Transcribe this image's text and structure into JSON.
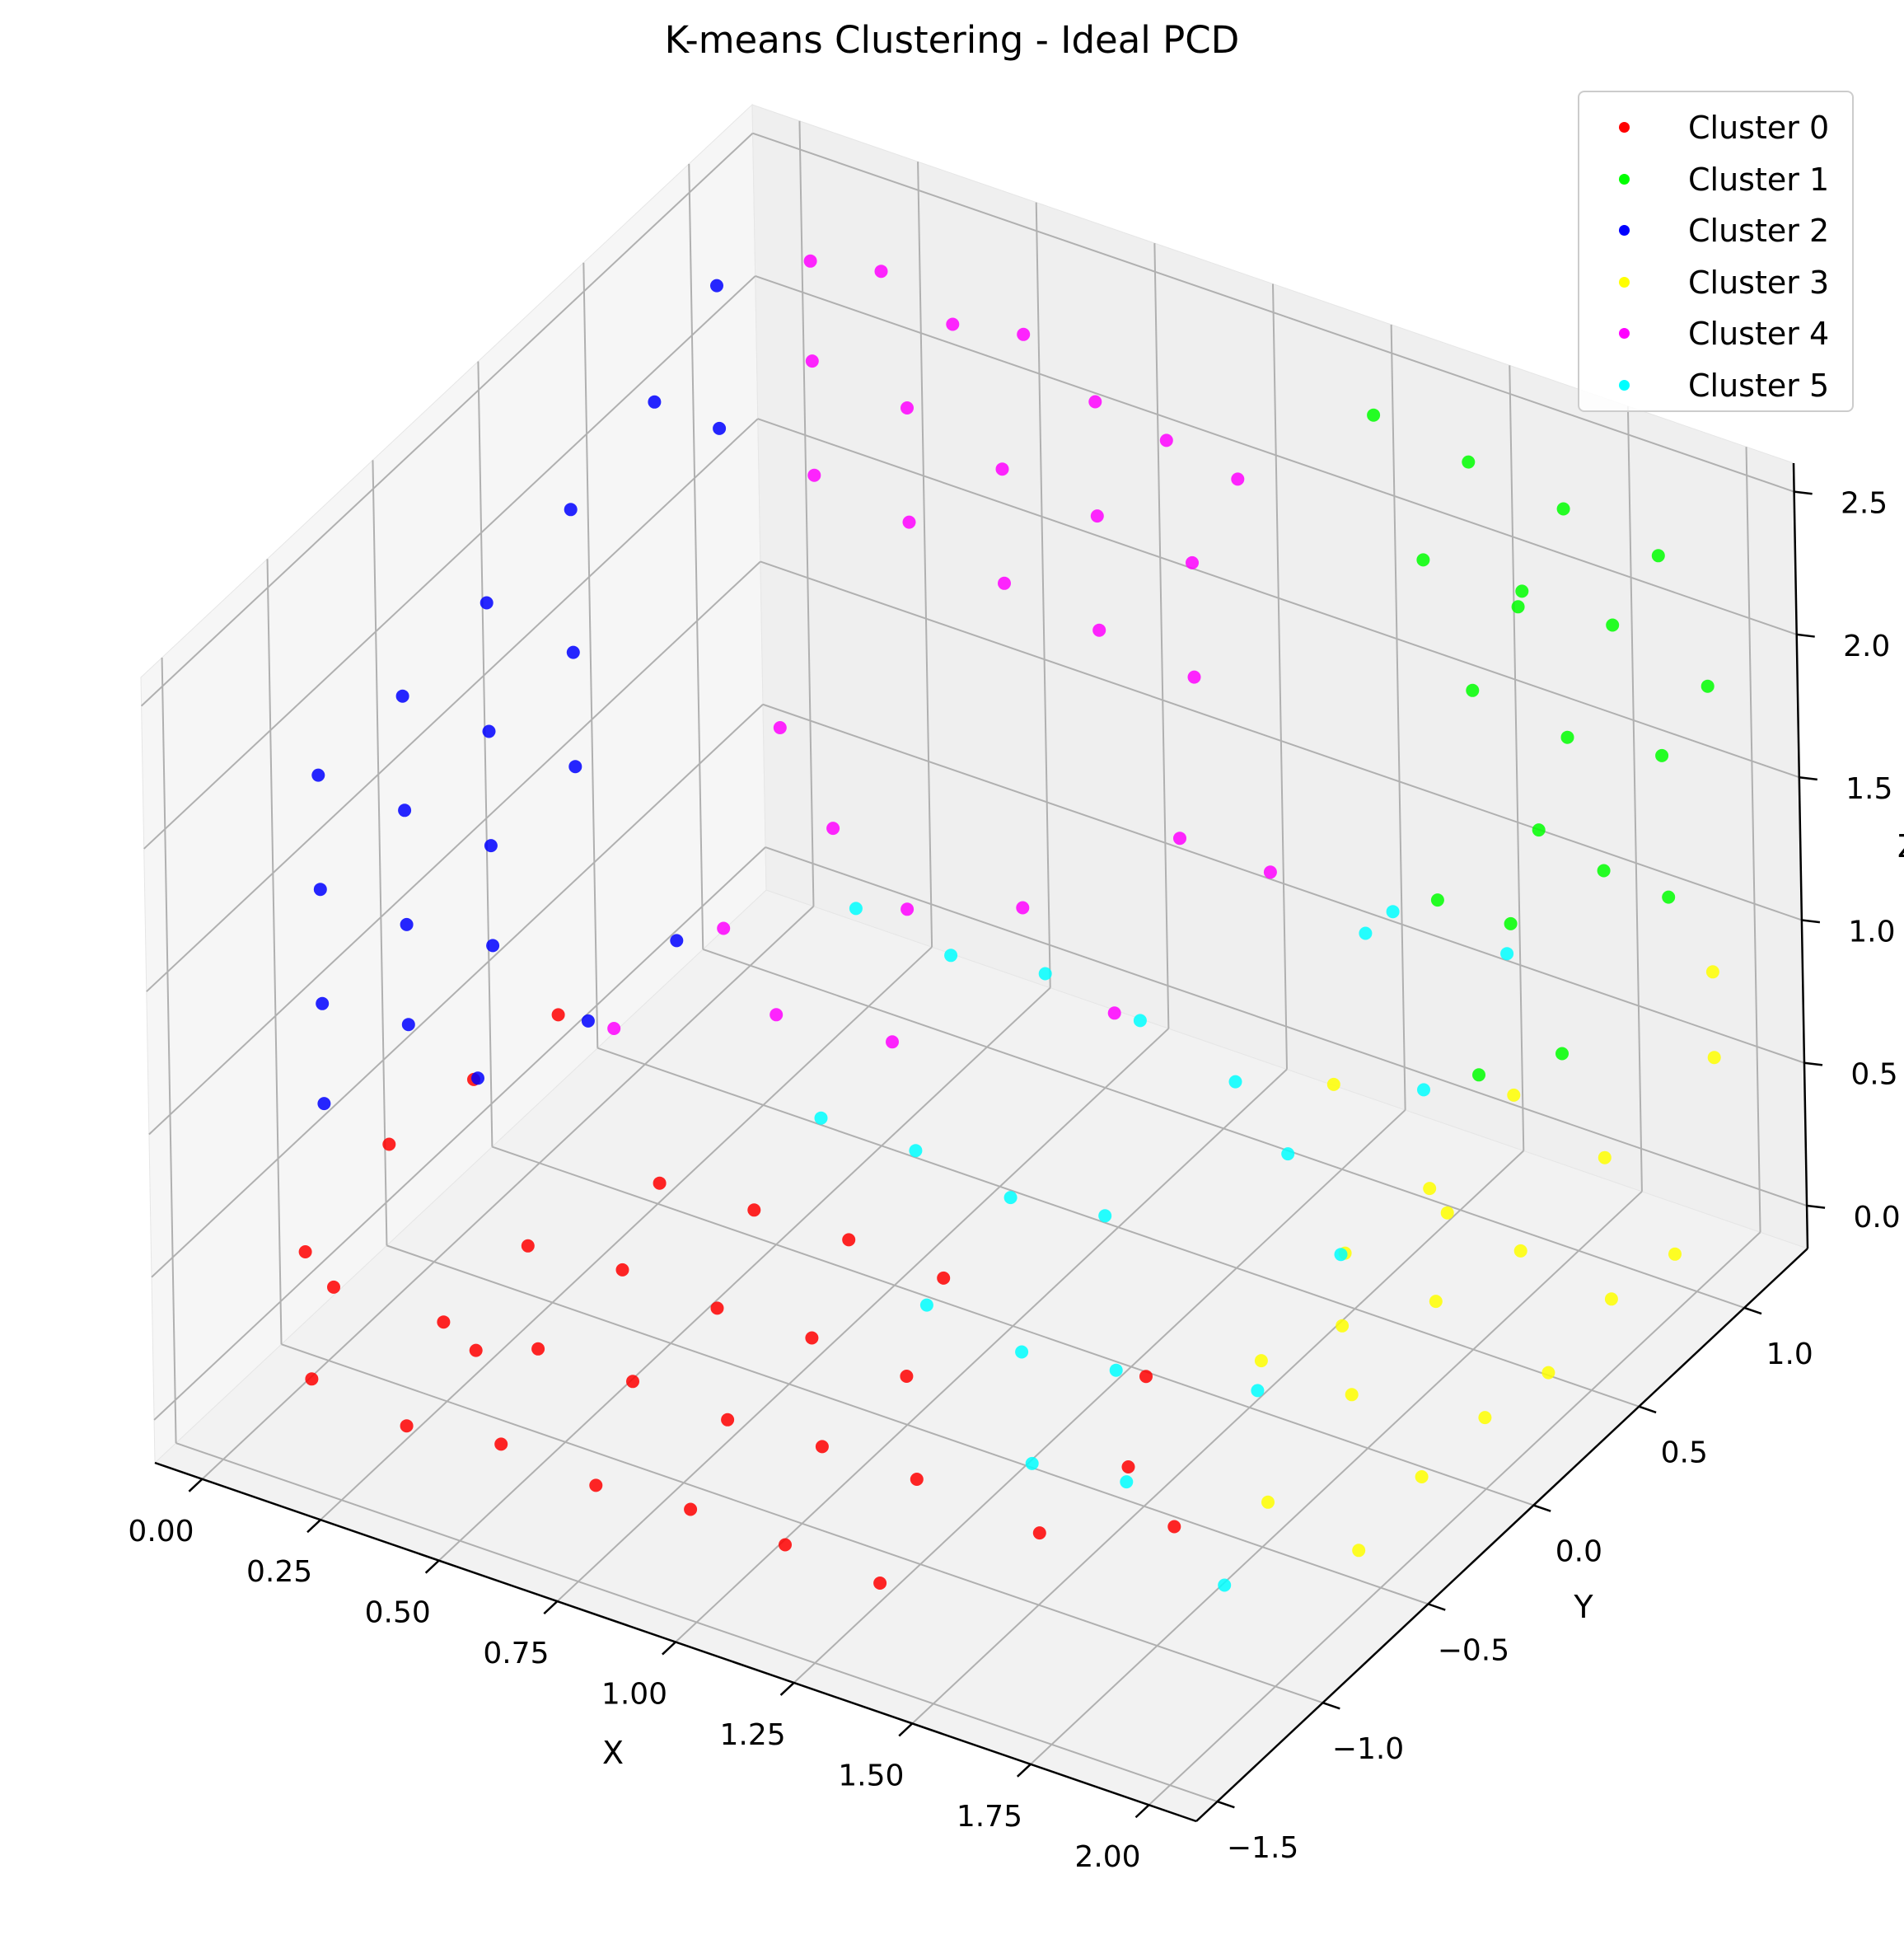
{
  "chart_data": {
    "type": "scatter",
    "projection": "3d",
    "title": "K-means Clustering - Ideal PCD",
    "xlabel": "X",
    "ylabel": "Y",
    "zlabel": "Z",
    "xlim": [
      -0.1,
      2.1
    ],
    "ylim": [
      -1.6,
      1.3
    ],
    "zlim": [
      -0.15,
      2.6
    ],
    "xticks": [
      "0.00",
      "0.25",
      "0.50",
      "0.75",
      "1.00",
      "1.25",
      "1.50",
      "1.75",
      "2.00"
    ],
    "yticks": [
      "−1.5",
      "−1.0",
      "−0.5",
      "0.0",
      "0.5",
      "1.0"
    ],
    "zticks": [
      "0.0",
      "0.5",
      "1.0",
      "1.5",
      "2.0",
      "2.5"
    ],
    "grid": true,
    "legend_position": "top-right",
    "series": [
      {
        "name": "Cluster 0",
        "color": "#ff0000",
        "points": [
          [
            0.1,
            -1.3,
            0.05
          ],
          [
            0.3,
            -1.3,
            0.0
          ],
          [
            0.5,
            -1.3,
            0.05
          ],
          [
            0.7,
            -1.3,
            0.02
          ],
          [
            0.9,
            -1.3,
            0.05
          ],
          [
            1.1,
            -1.3,
            0.04
          ],
          [
            1.3,
            -1.3,
            0.02
          ],
          [
            0.2,
            -0.9,
            0.03
          ],
          [
            0.4,
            -0.9,
            0.05
          ],
          [
            0.6,
            -0.9,
            0.05
          ],
          [
            0.8,
            -0.9,
            0.03
          ],
          [
            1.0,
            -0.9,
            0.05
          ],
          [
            1.2,
            -0.9,
            0.05
          ],
          [
            0.2,
            -0.5,
            0.02
          ],
          [
            0.4,
            -0.5,
            0.05
          ],
          [
            0.6,
            -0.5,
            0.03
          ],
          [
            0.8,
            -0.5,
            0.04
          ],
          [
            1.0,
            -0.5,
            0.02
          ],
          [
            0.3,
            -0.1,
            0.02
          ],
          [
            0.5,
            -0.1,
            0.04
          ],
          [
            0.7,
            -0.1,
            0.05
          ],
          [
            0.9,
            -0.1,
            0.03
          ],
          [
            0.0,
            -1.1,
            0.3
          ],
          [
            0.0,
            -0.7,
            0.4
          ],
          [
            0.0,
            -0.3,
            0.35
          ],
          [
            0.0,
            0.1,
            0.3
          ],
          [
            0.15,
            -1.3,
            0.4
          ],
          [
            0.45,
            -1.3,
            0.35
          ],
          [
            1.55,
            -1.1,
            0.2
          ],
          [
            1.65,
            -0.9,
            0.35
          ],
          [
            1.6,
            -0.7,
            0.5
          ],
          [
            1.7,
            -0.8,
            0.1
          ]
        ]
      },
      {
        "name": "Cluster 1",
        "color": "#00ff00",
        "points": [
          [
            1.3,
            1.1,
            2.45
          ],
          [
            1.5,
            1.1,
            2.4
          ],
          [
            1.7,
            1.1,
            2.35
          ],
          [
            1.9,
            1.1,
            2.3
          ],
          [
            1.4,
            1.1,
            2.0
          ],
          [
            1.6,
            1.1,
            1.95
          ],
          [
            1.8,
            1.1,
            2.0
          ],
          [
            2.0,
            1.1,
            1.9
          ],
          [
            1.5,
            1.1,
            1.6
          ],
          [
            1.7,
            1.1,
            1.55
          ],
          [
            1.9,
            1.1,
            1.6
          ],
          [
            2.0,
            0.9,
            1.3
          ],
          [
            2.0,
            0.6,
            1.6
          ],
          [
            2.0,
            0.3,
            1.95
          ],
          [
            2.0,
            0.0,
            1.3
          ],
          [
            1.95,
            0.5,
            1.0
          ],
          [
            1.8,
            0.6,
            1.3
          ],
          [
            1.6,
            0.7,
            1.2
          ],
          [
            1.7,
            0.9,
            2.2
          ]
        ]
      },
      {
        "name": "Cluster 2",
        "color": "#0000ff",
        "points": [
          [
            0.0,
            -1.0,
            1.9
          ],
          [
            0.0,
            -0.6,
            1.9
          ],
          [
            0.0,
            -0.2,
            1.95
          ],
          [
            0.0,
            0.2,
            2.0
          ],
          [
            0.0,
            -1.0,
            1.5
          ],
          [
            0.0,
            -0.6,
            1.5
          ],
          [
            0.0,
            -0.2,
            1.5
          ],
          [
            0.0,
            0.2,
            1.5
          ],
          [
            0.0,
            -1.0,
            1.1
          ],
          [
            0.0,
            -0.6,
            1.1
          ],
          [
            0.0,
            -0.2,
            1.1
          ],
          [
            0.0,
            0.2,
            1.1
          ],
          [
            0.0,
            -1.0,
            0.75
          ],
          [
            0.0,
            -0.6,
            0.75
          ],
          [
            0.0,
            -0.2,
            0.75
          ],
          [
            0.0,
            0.6,
            2.1
          ],
          [
            0.0,
            0.9,
            2.3
          ],
          [
            0.0,
            0.9,
            1.8
          ],
          [
            0.1,
            -0.5,
            0.55
          ],
          [
            0.2,
            -0.2,
            0.6
          ],
          [
            0.3,
            0.0,
            0.8
          ]
        ]
      },
      {
        "name": "Cluster 3",
        "color": "#ffff00",
        "points": [
          [
            2.0,
            -0.6,
            0.05
          ],
          [
            2.0,
            -0.3,
            0.1
          ],
          [
            2.0,
            0.0,
            0.1
          ],
          [
            2.0,
            0.3,
            0.05
          ],
          [
            2.0,
            0.6,
            0.1
          ],
          [
            2.0,
            0.9,
            0.05
          ],
          [
            1.9,
            -0.8,
            0.3
          ],
          [
            1.9,
            -0.4,
            0.4
          ],
          [
            1.9,
            0.0,
            0.45
          ],
          [
            1.9,
            0.4,
            0.35
          ],
          [
            1.9,
            0.8,
            0.4
          ],
          [
            1.8,
            -0.6,
            0.6
          ],
          [
            1.8,
            -0.2,
            0.7
          ],
          [
            1.8,
            0.2,
            0.65
          ],
          [
            1.8,
            0.6,
            0.7
          ],
          [
            2.0,
            1.1,
            0.6
          ],
          [
            2.0,
            1.1,
            0.9
          ],
          [
            1.7,
            0.0,
            0.25
          ],
          [
            1.7,
            0.5,
            0.3
          ],
          [
            1.6,
            0.2,
            0.9
          ]
        ]
      },
      {
        "name": "Cluster 4",
        "color": "#ff00ff",
        "points": [
          [
            0.2,
            0.9,
            2.5
          ],
          [
            0.35,
            0.9,
            2.55
          ],
          [
            0.5,
            0.9,
            2.45
          ],
          [
            0.65,
            0.9,
            2.5
          ],
          [
            0.8,
            0.9,
            2.35
          ],
          [
            0.95,
            0.9,
            2.3
          ],
          [
            1.1,
            0.9,
            2.25
          ],
          [
            0.2,
            0.9,
            2.15
          ],
          [
            0.4,
            0.9,
            2.1
          ],
          [
            0.6,
            0.9,
            2.0
          ],
          [
            0.8,
            0.9,
            1.95
          ],
          [
            1.0,
            0.9,
            1.9
          ],
          [
            0.2,
            0.9,
            1.75
          ],
          [
            0.4,
            0.9,
            1.7
          ],
          [
            0.6,
            0.9,
            1.6
          ],
          [
            0.8,
            0.9,
            1.55
          ],
          [
            1.0,
            0.9,
            1.5
          ],
          [
            0.3,
            0.5,
            1.2
          ],
          [
            0.5,
            0.3,
            1.1
          ],
          [
            0.7,
            0.2,
            1.0
          ],
          [
            0.9,
            0.3,
            1.05
          ],
          [
            0.4,
            0.0,
            0.9
          ],
          [
            0.6,
            -0.2,
            0.85
          ],
          [
            0.8,
            -0.1,
            0.8
          ],
          [
            0.3,
            -0.3,
            0.7
          ],
          [
            1.1,
            0.6,
            1.2
          ],
          [
            1.2,
            0.8,
            1.0
          ],
          [
            1.0,
            0.5,
            0.6
          ]
        ]
      },
      {
        "name": "Cluster 5",
        "color": "#00ffff",
        "points": [
          [
            0.5,
            0.4,
            0.75
          ],
          [
            0.7,
            0.4,
            0.7
          ],
          [
            0.9,
            0.4,
            0.75
          ],
          [
            1.1,
            0.4,
            0.7
          ],
          [
            1.3,
            0.4,
            0.6
          ],
          [
            0.6,
            0.0,
            0.35
          ],
          [
            0.8,
            0.0,
            0.35
          ],
          [
            1.0,
            0.0,
            0.3
          ],
          [
            1.2,
            0.0,
            0.35
          ],
          [
            1.0,
            -0.4,
            0.2
          ],
          [
            1.2,
            -0.4,
            0.15
          ],
          [
            1.4,
            -0.4,
            0.2
          ],
          [
            1.4,
            -0.8,
            0.15
          ],
          [
            1.6,
            -0.8,
            0.2
          ],
          [
            1.7,
            -0.4,
            0.3
          ],
          [
            1.7,
            0.0,
            0.5
          ],
          [
            1.7,
            0.4,
            0.8
          ],
          [
            1.7,
            0.8,
            1.0
          ],
          [
            1.55,
            0.6,
            1.2
          ],
          [
            1.4,
            0.8,
            0.9
          ],
          [
            1.5,
            0.2,
            0.6
          ],
          [
            1.85,
            -0.9,
            0.05
          ]
        ]
      }
    ]
  }
}
